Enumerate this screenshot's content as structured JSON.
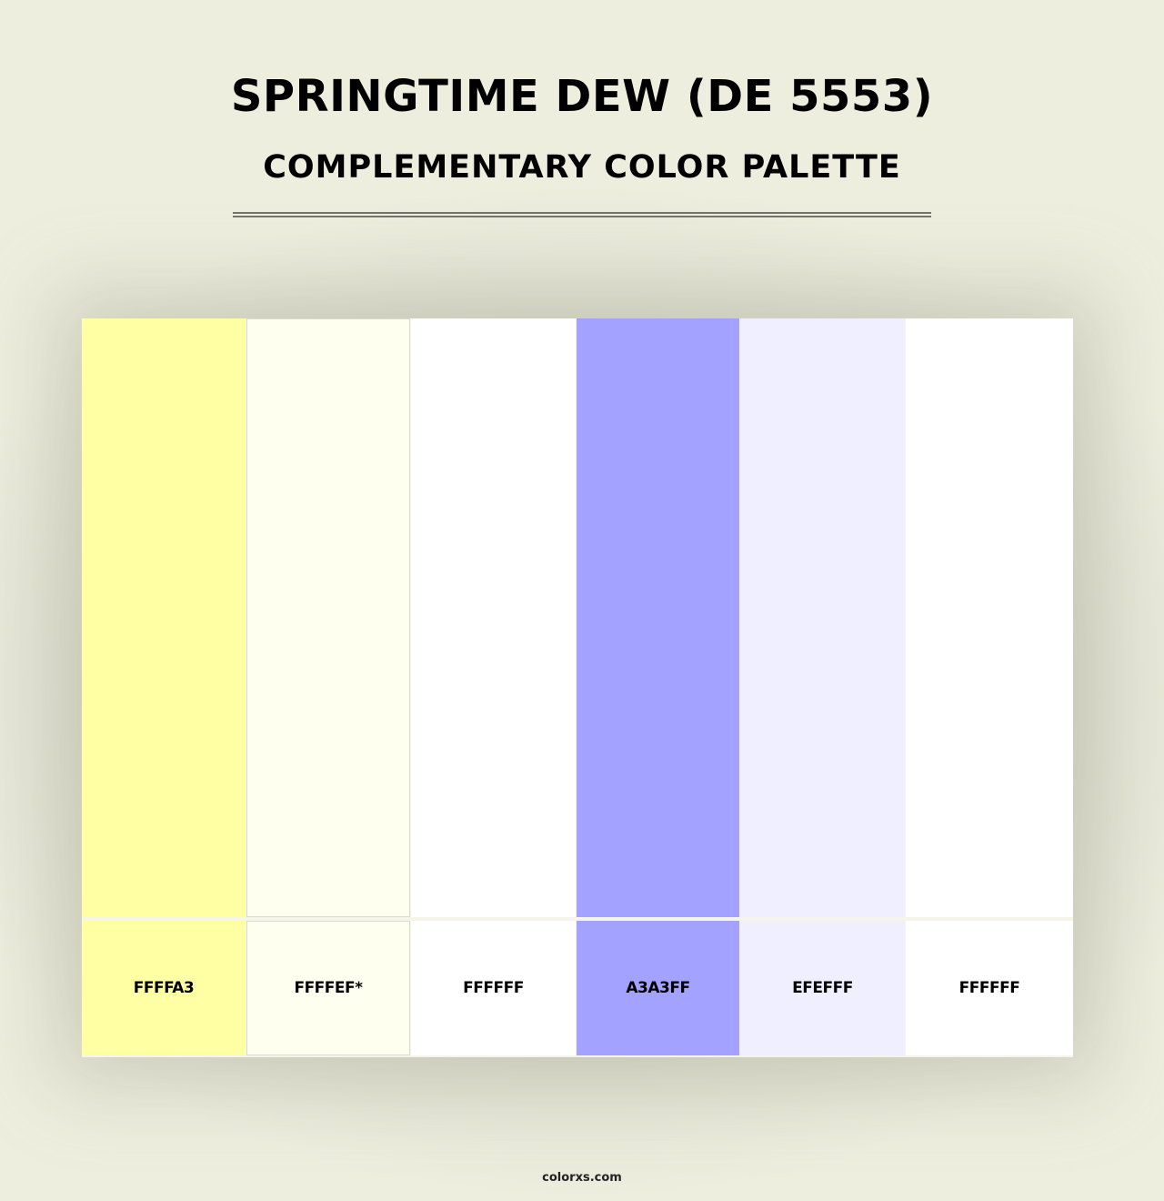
{
  "title": "SPRINGTIME DEW (DE 5553)",
  "subtitle": "COMPLEMENTARY COLOR PALETTE",
  "swatches": [
    {
      "label": "FFFFA3",
      "color": "#FFFFA3"
    },
    {
      "label": "FFFFEF*",
      "color": "#FFFFEF"
    },
    {
      "label": "FFFFFF",
      "color": "#FFFFFF"
    },
    {
      "label": "A3A3FF",
      "color": "#A3A3FF"
    },
    {
      "label": "EFEFFF",
      "color": "#EFEFFF"
    },
    {
      "label": "FFFFFF",
      "color": "#FFFFFF"
    }
  ],
  "footer": "colorxs.com"
}
